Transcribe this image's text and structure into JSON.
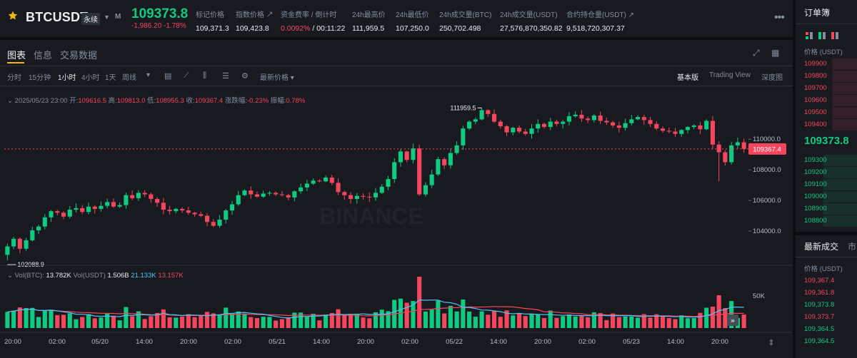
{
  "header": {
    "symbol": "BTCUSDT",
    "contract_type": "永续",
    "margin_mode": "M",
    "last_price": "109373.8",
    "change": "-1,986.20 -1.78%",
    "stats": [
      {
        "label": "标记价格",
        "value": "109,371.3"
      },
      {
        "label": "指数价格 ↗",
        "value": "109,423.8"
      },
      {
        "label": "资金费率 / 倒计时",
        "value_rate": "0.0092%",
        "value_timer": " / 00:11:22"
      },
      {
        "label": "24h最高价",
        "value": "111,959.5"
      },
      {
        "label": "24h最低价",
        "value": "107,250.0"
      },
      {
        "label": "24h成交量(BTC)",
        "value": "250,702.498"
      },
      {
        "label": "24h成交量(USDT)",
        "value": "27,576,870,350.82"
      },
      {
        "label": "合约持仓量(USDT) ↗",
        "value": "9,518,720,307.37"
      }
    ],
    "more_icon": "more-dots-icon"
  },
  "tabs": [
    "图表",
    "信息",
    "交易数据"
  ],
  "toolbar": {
    "intervals": [
      "分时",
      "15分钟",
      "1小时",
      "4小时",
      "1天",
      "周线"
    ],
    "active_interval": "1小时",
    "price_type": "最新价格",
    "views": [
      "基本版",
      "Trading View",
      "深度图"
    ],
    "active_view": "基本版"
  },
  "ohlc": {
    "time": "2025/05/23 23:00",
    "open_label": "开:",
    "open": "109616.5",
    "high_label": "高:",
    "high": "109813.0",
    "low_label": "低:",
    "low": "108955.3",
    "close_label": "收:",
    "close": "109367.4",
    "chg_label": "涨跌幅:",
    "chg": "-0.23%",
    "amp_label": "振幅:",
    "amp": "0.78%"
  },
  "volume_legend": {
    "btc_label": "Vol(BTC):",
    "btc": "13.782K",
    "usdt_label": "Vol(USDT)",
    "usdt": "1.506B",
    "ma1": "21.133K",
    "ma2": "13.157K"
  },
  "chart_data": {
    "type": "candlestick",
    "interval": "1h",
    "y_ticks": [
      "110000.0",
      "108000.0",
      "106000.0",
      "104000.0"
    ],
    "ylim": [
      102700,
      112200
    ],
    "current_price_label": "109367.4",
    "max_label": "111959.5",
    "min_label": "102088.9",
    "volume_tick": "50K",
    "x_ticks": [
      "20:00",
      "02:00",
      "05/20",
      "14:00",
      "20:00",
      "02:00",
      "05/21",
      "14:00",
      "20:00",
      "02:00",
      "05/22",
      "14:00",
      "20:00",
      "02:00",
      "05/23",
      "14:00",
      "20:00"
    ],
    "colors": {
      "up": "#0ecb81",
      "down": "#f6465d",
      "ma_fast": "#4fc3f7",
      "ma_slow": "#f6465d"
    },
    "closes": [
      103000,
      103500,
      102850,
      103400,
      104050,
      104300,
      104900,
      105300,
      105200,
      104950,
      105400,
      105500,
      105250,
      105600,
      105450,
      105650,
      105900,
      105600,
      105700,
      106350,
      106150,
      106500,
      106400,
      106100,
      105850,
      105400,
      105300,
      105450,
      105350,
      105200,
      105100,
      105000,
      104600,
      104350,
      104750,
      105350,
      105750,
      106350,
      106650,
      106400,
      106250,
      106450,
      106500,
      106400,
      106350,
      106200,
      106600,
      106850,
      107100,
      107300,
      107250,
      107500,
      107150,
      106550,
      106350,
      106100,
      106300,
      106250,
      106200,
      106500,
      106900,
      107400,
      108500,
      109200,
      108650,
      109400,
      106400,
      107000,
      107700,
      108700,
      108300,
      109100,
      109600,
      110700,
      111150,
      111300,
      111900,
      111650,
      111150,
      110850,
      110450,
      110750,
      110500,
      110350,
      110700,
      111000,
      110800,
      111150,
      111000,
      111150,
      111500,
      111600,
      111350,
      111250,
      111550,
      111200,
      111100,
      110900,
      110750,
      111050,
      111300,
      111450,
      111250,
      111000,
      110700,
      110550,
      110500,
      110350,
      110600,
      110800,
      110900,
      110650,
      111200,
      109650,
      109150,
      108500,
      109600,
      109800,
      109367
    ]
  },
  "orderbook": {
    "title": "订单簿",
    "header": "价格 (USDT)",
    "asks": [
      "109900",
      "109800",
      "109700",
      "109600",
      "109500",
      "109400"
    ],
    "mid": "109373.8",
    "bids": [
      "109300",
      "109200",
      "109100",
      "109000",
      "108900",
      "108800"
    ]
  },
  "trades": {
    "title": "最新成交",
    "title2": "市",
    "header": "价格 (USDT)",
    "rows": [
      {
        "price": "109,367.4",
        "color": "#f6465d"
      },
      {
        "price": "109,361.8",
        "color": "#f6465d"
      },
      {
        "price": "109,373.8",
        "color": "#0ecb81"
      },
      {
        "price": "109,373.7",
        "color": "#f6465d"
      },
      {
        "price": "109,364.5",
        "color": "#0ecb81"
      },
      {
        "price": "109,364.5",
        "color": "#0ecb81"
      }
    ]
  }
}
